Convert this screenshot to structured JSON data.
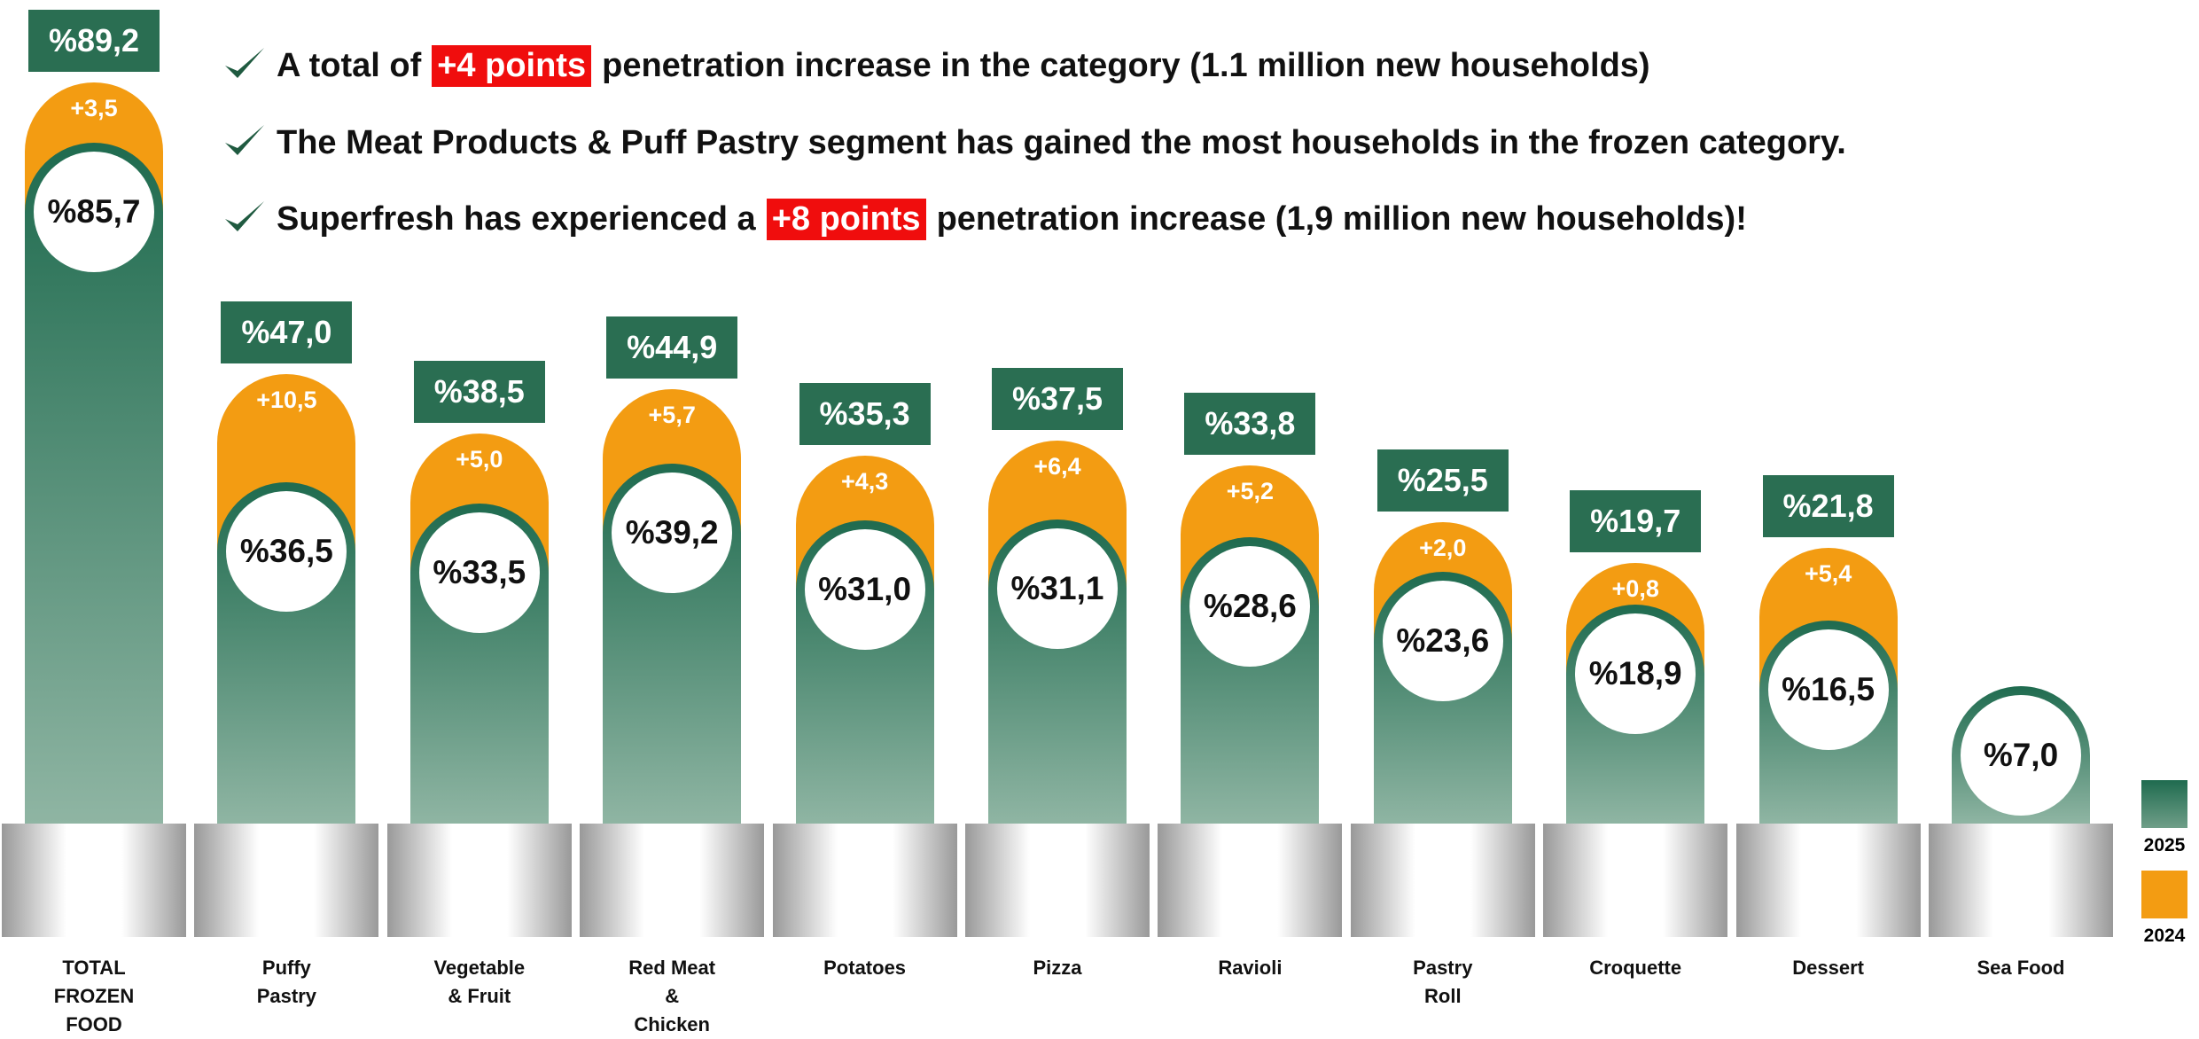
{
  "bullets": [
    [
      "A total of",
      "+4 points",
      "penetration increase in the category (1.1 million new households)"
    ],
    [
      "The Meat Products & Puff Pastry segment has gained the most households in the frozen category."
    ],
    [
      "Superfresh has experienced a",
      "+8 points",
      "penetration increase (1,9 million new households)!"
    ]
  ],
  "chart_data": {
    "type": "bar",
    "categories": [
      "TOTAL\nFROZEN\nFOOD",
      "Puffy\nPastry",
      "Vegetable\n& Fruit",
      "Red Meat\n&\nChicken",
      "Potatoes",
      "Pizza",
      "Ravioli",
      "Pastry\nRoll",
      "Croquette",
      "Dessert",
      "Sea Food"
    ],
    "series": [
      {
        "name": "2025",
        "color": "#1f6b4f",
        "values": [
          85.7,
          36.5,
          33.5,
          39.2,
          31.0,
          31.1,
          28.6,
          23.6,
          18.9,
          16.5,
          7.0
        ],
        "value_labels": [
          "%85,7",
          "%36,5",
          "%33,5",
          "%39,2",
          "%31,0",
          "%31,1",
          "%28,6",
          "%23,6",
          "%18,9",
          "%16,5",
          "%7,0"
        ]
      },
      {
        "name": "2024",
        "color": "#f39c12",
        "values": [
          3.5,
          10.5,
          5.0,
          5.7,
          4.3,
          6.4,
          5.2,
          2.0,
          0.8,
          5.4,
          null
        ],
        "value_labels": [
          "+3,5",
          "+10,5",
          "+5,0",
          "+5,7",
          "+4,3",
          "+6,4",
          "+5,2",
          "+2,0",
          "+0,8",
          "+5,4",
          null
        ]
      }
    ],
    "totals": {
      "values": [
        89.2,
        47.0,
        38.5,
        44.9,
        35.3,
        37.5,
        33.8,
        25.5,
        19.7,
        21.8,
        null
      ],
      "value_labels": [
        "%89,2",
        "%47,0",
        "%38,5",
        "%44,9",
        "%35,3",
        "%37,5",
        "%33,8",
        "%25,5",
        "%19,7",
        "%21,8",
        null
      ]
    }
  }
}
